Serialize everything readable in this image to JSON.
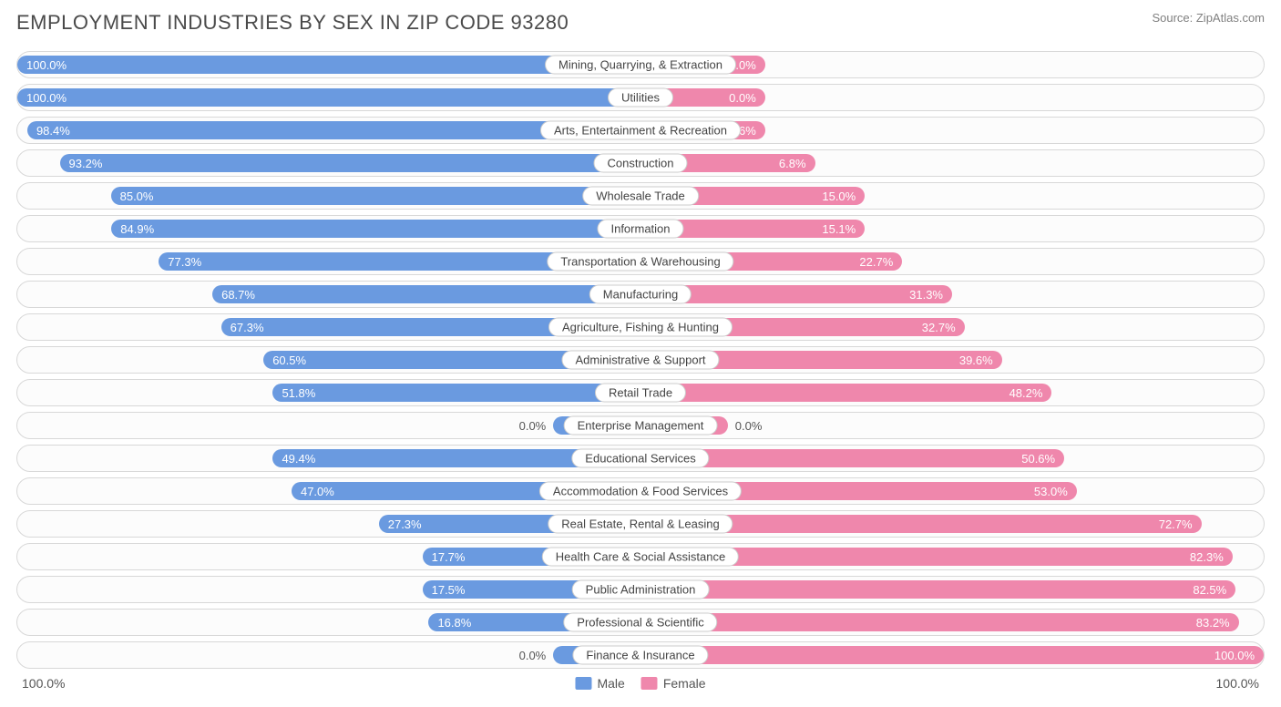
{
  "title": "EMPLOYMENT INDUSTRIES BY SEX IN ZIP CODE 93280",
  "source": "Source: ZipAtlas.com",
  "colors": {
    "male": "#6a9ae0",
    "female": "#ef87ac",
    "row_border": "#d8d8d8",
    "row_bg": "#fcfcfc",
    "pill_border": "#cccccc",
    "text_dark": "#4a4a4a",
    "text_mid": "#555555"
  },
  "axis": {
    "left": "100.0%",
    "right": "100.0%"
  },
  "legend": [
    {
      "label": "Male",
      "color": "#6a9ae0"
    },
    {
      "label": "Female",
      "color": "#ef87ac"
    }
  ],
  "label_inside_threshold": 14,
  "zero_bar_width_pct": 14,
  "chart": {
    "type": "diverging-bar",
    "rows": [
      {
        "category": "Mining, Quarrying, & Extraction",
        "male": 100.0,
        "female": 0.0,
        "male_bar": 100.0,
        "female_bar": 20.0
      },
      {
        "category": "Utilities",
        "male": 100.0,
        "female": 0.0,
        "male_bar": 100.0,
        "female_bar": 20.0
      },
      {
        "category": "Arts, Entertainment & Recreation",
        "male": 98.4,
        "female": 1.6,
        "male_bar": 98.4,
        "female_bar": 20.0
      },
      {
        "category": "Construction",
        "male": 93.2,
        "female": 6.8,
        "male_bar": 93.2,
        "female_bar": 28.0
      },
      {
        "category": "Wholesale Trade",
        "male": 85.0,
        "female": 15.0,
        "male_bar": 85.0,
        "female_bar": 36.0
      },
      {
        "category": "Information",
        "male": 84.9,
        "female": 15.1,
        "male_bar": 84.9,
        "female_bar": 36.0
      },
      {
        "category": "Transportation & Warehousing",
        "male": 77.3,
        "female": 22.7,
        "male_bar": 77.3,
        "female_bar": 42.0
      },
      {
        "category": "Manufacturing",
        "male": 68.7,
        "female": 31.3,
        "male_bar": 68.7,
        "female_bar": 50.0
      },
      {
        "category": "Agriculture, Fishing & Hunting",
        "male": 67.3,
        "female": 32.7,
        "male_bar": 67.3,
        "female_bar": 52.0
      },
      {
        "category": "Administrative & Support",
        "male": 60.5,
        "female": 39.6,
        "male_bar": 60.5,
        "female_bar": 58.0
      },
      {
        "category": "Retail Trade",
        "male": 51.8,
        "female": 48.2,
        "male_bar": 59.0,
        "female_bar": 66.0
      },
      {
        "category": "Enterprise Management",
        "male": 0.0,
        "female": 0.0,
        "male_bar": 14.0,
        "female_bar": 14.0
      },
      {
        "category": "Educational Services",
        "male": 49.4,
        "female": 50.6,
        "male_bar": 59.0,
        "female_bar": 68.0
      },
      {
        "category": "Accommodation & Food Services",
        "male": 47.0,
        "female": 53.0,
        "male_bar": 56.0,
        "female_bar": 70.0
      },
      {
        "category": "Real Estate, Rental & Leasing",
        "male": 27.3,
        "female": 72.7,
        "male_bar": 42.0,
        "female_bar": 90.0
      },
      {
        "category": "Health Care & Social Assistance",
        "male": 17.7,
        "female": 82.3,
        "male_bar": 35.0,
        "female_bar": 95.0
      },
      {
        "category": "Public Administration",
        "male": 17.5,
        "female": 82.5,
        "male_bar": 35.0,
        "female_bar": 95.5
      },
      {
        "category": "Professional & Scientific",
        "male": 16.8,
        "female": 83.2,
        "male_bar": 34.0,
        "female_bar": 96.0
      },
      {
        "category": "Finance & Insurance",
        "male": 0.0,
        "female": 100.0,
        "male_bar": 14.0,
        "female_bar": 100.0
      }
    ]
  }
}
